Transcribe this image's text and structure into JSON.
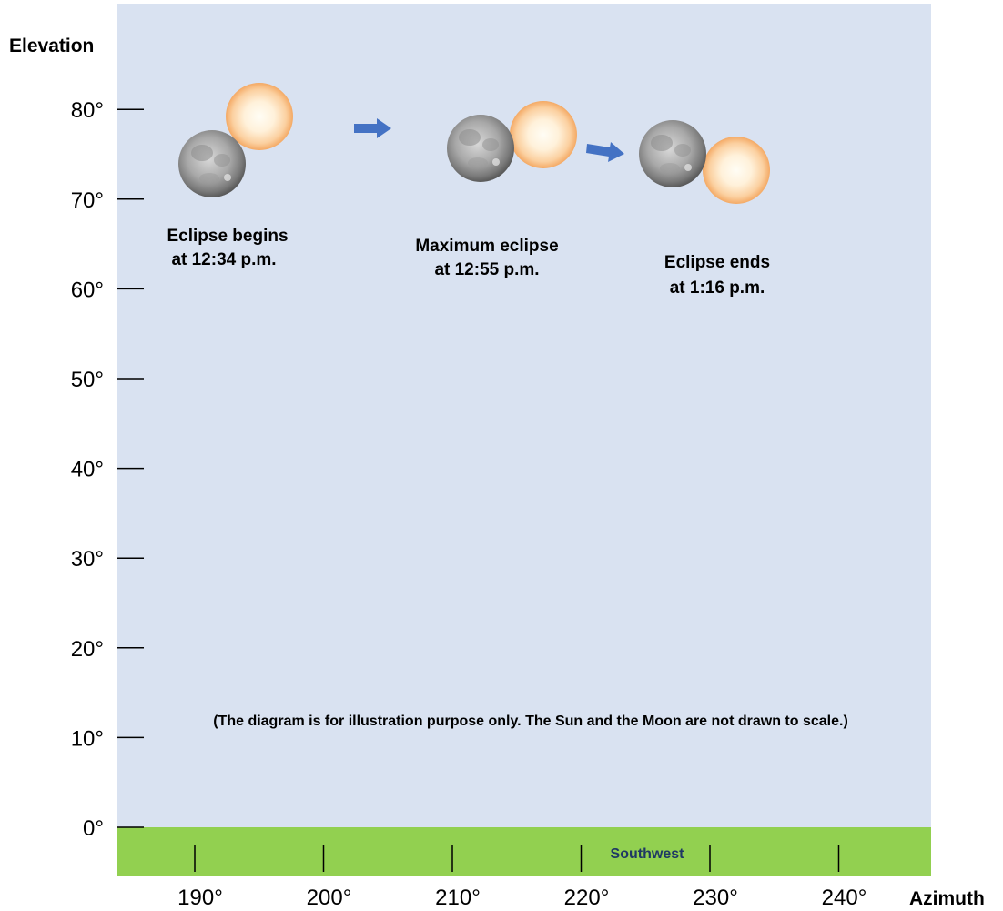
{
  "axes": {
    "y_title": "Elevation",
    "x_title": "Azimuth",
    "y_ticks": [
      {
        "value": 0,
        "label": "0°"
      },
      {
        "value": 10,
        "label": "10°"
      },
      {
        "value": 20,
        "label": "20°"
      },
      {
        "value": 30,
        "label": "30°"
      },
      {
        "value": 40,
        "label": "40°"
      },
      {
        "value": 50,
        "label": "50°"
      },
      {
        "value": 60,
        "label": "60°"
      },
      {
        "value": 70,
        "label": "70°"
      },
      {
        "value": 80,
        "label": "80°"
      }
    ],
    "x_ticks": [
      {
        "value": 190,
        "label": "190°"
      },
      {
        "value": 200,
        "label": "200°"
      },
      {
        "value": 210,
        "label": "210°"
      },
      {
        "value": 220,
        "label": "220°"
      },
      {
        "value": 230,
        "label": "230°"
      },
      {
        "value": 240,
        "label": "240°"
      }
    ]
  },
  "ground": {
    "label": "Southwest"
  },
  "events": [
    {
      "line1": "Eclipse begins",
      "line2": "at 12:34 p.m."
    },
    {
      "line1": "Maximum eclipse",
      "line2": "at 12:55 p.m."
    },
    {
      "line1": "Eclipse ends",
      "line2": "at 1:16 p.m."
    }
  ],
  "note": "(The diagram is for illustration purpose only.  The Sun and the Moon are not drawn to scale.)",
  "colors": {
    "sky": "#d9e2f1",
    "ground": "#92d050",
    "arrow": "#4472c4",
    "sun_core": "#fffaf0",
    "sun_edge": "#f7b77a",
    "ground_label": "#1f3864"
  }
}
